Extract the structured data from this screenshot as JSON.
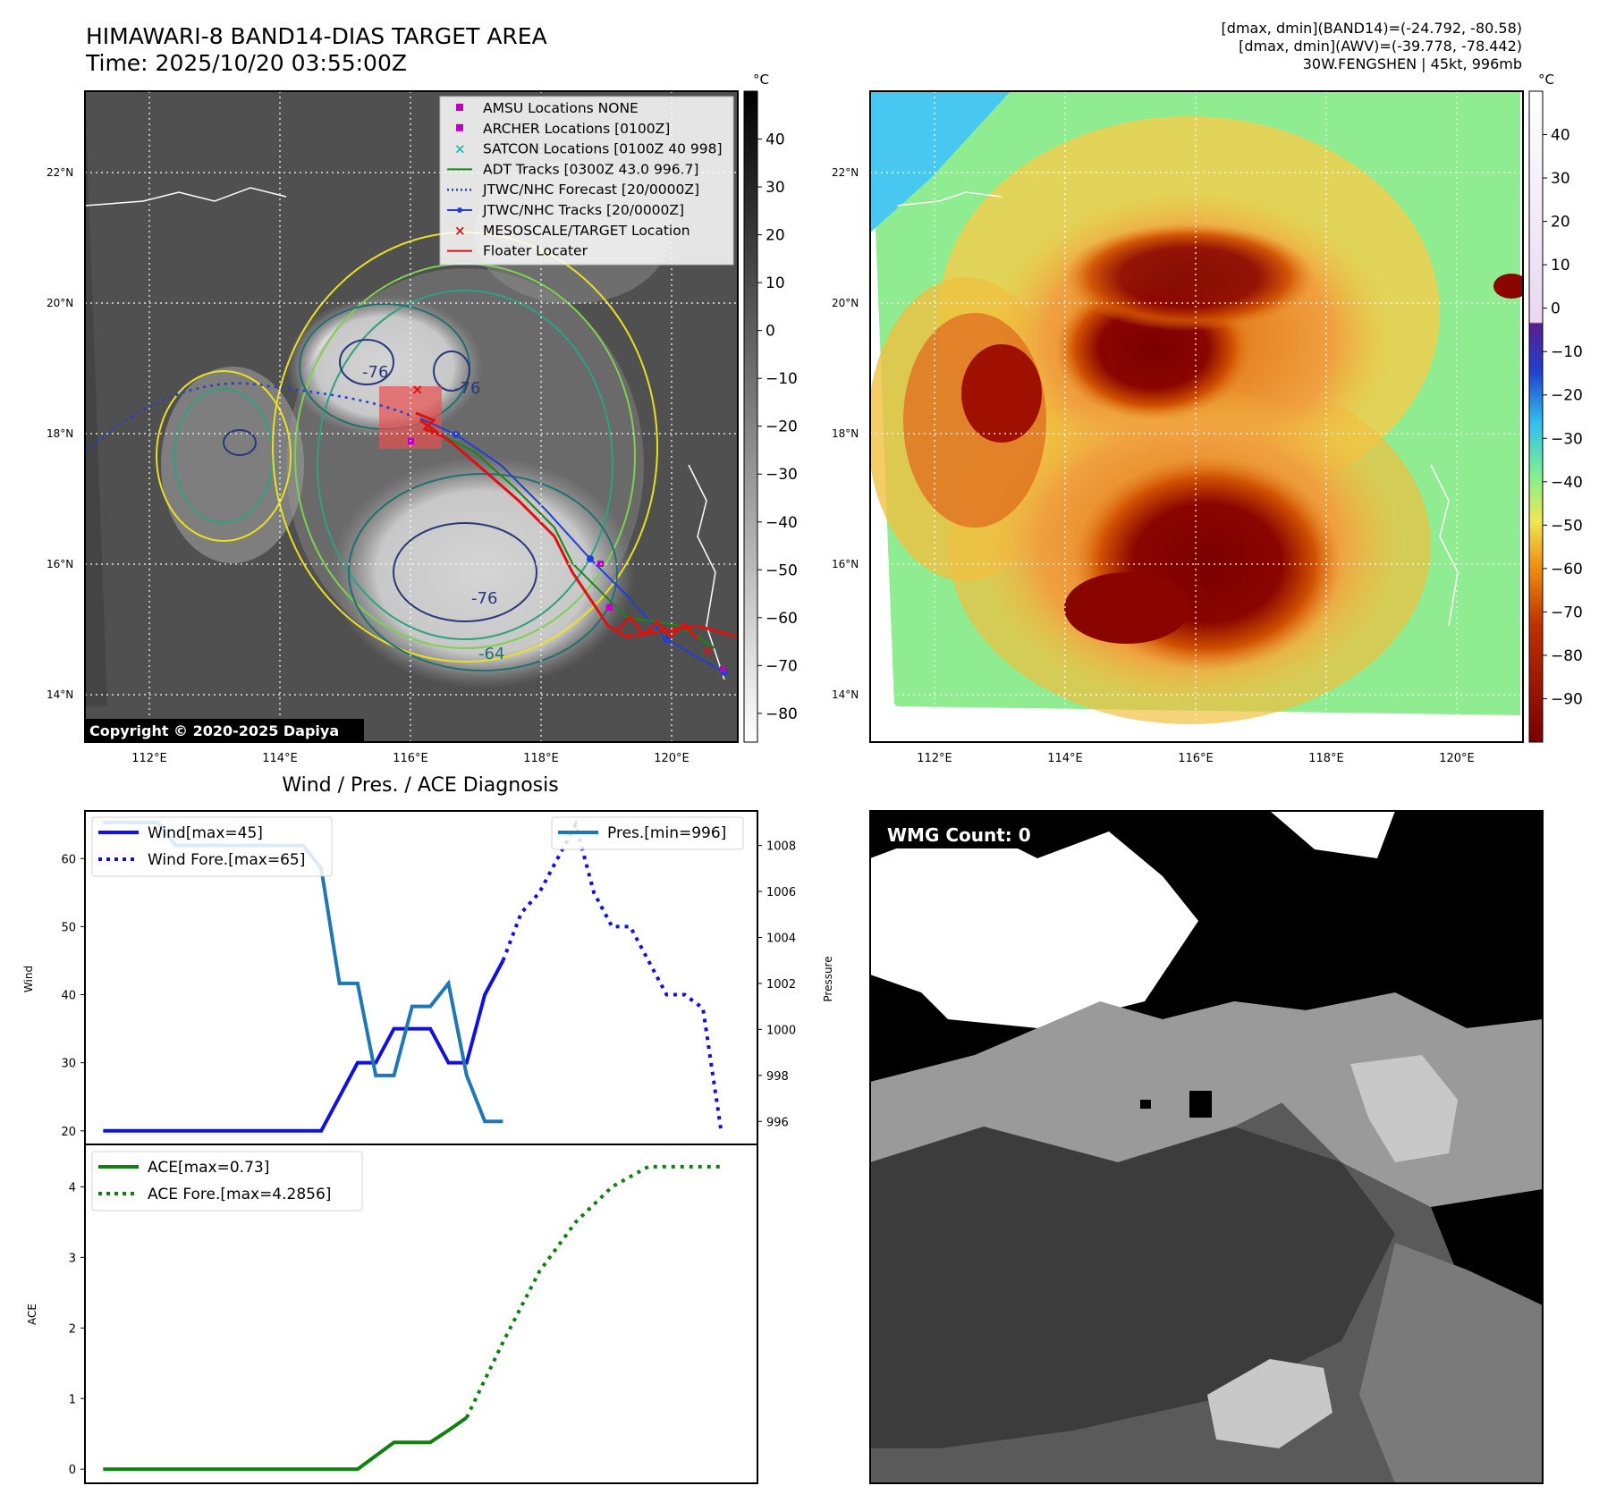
{
  "header": {
    "title": "HIMAWARI-8 BAND14-DIAS TARGET AREA",
    "time": "Time: 2025/10/20 03:55:00Z",
    "info_line1": "[dmax, dmin](BAND14)=(-24.792, -80.58)",
    "info_line2": "[dmax, dmin](AWV)=(-39.778, -78.442)",
    "info_line3": "30W.FENGSHEN | 45kt, 996mb"
  },
  "map_axes": {
    "lat_labels": [
      "22°N",
      "20°N",
      "18°N",
      "16°N",
      "14°N"
    ],
    "lon_labels": [
      "112°E",
      "114°E",
      "116°E",
      "118°E",
      "120°E"
    ]
  },
  "ir_panel": {
    "copyright": "Copyright © 2020-2025 Dapiya",
    "contour_labels": [
      "-76",
      "-76",
      "-76",
      "-64"
    ],
    "colorbar_unit": "°C",
    "colorbar_ticks": [
      "40",
      "30",
      "20",
      "10",
      "0",
      "−10",
      "−20",
      "−30",
      "−40",
      "−50",
      "−60",
      "−70",
      "−80"
    ],
    "legend": [
      {
        "label": "AMSU Locations NONE",
        "marker": "square",
        "color": "#c000c0"
      },
      {
        "label": "ARCHER Locations [0100Z]",
        "marker": "square",
        "color": "#c000c0"
      },
      {
        "label": "SATCON Locations [0100Z 40 998]",
        "marker": "x",
        "color": "#17bebe"
      },
      {
        "label": "ADT Tracks [0300Z 43.0 996.7]",
        "marker": "line",
        "color": "#138a13"
      },
      {
        "label": "JTWC/NHC Forecast [20/0000Z]",
        "marker": "dotted",
        "color": "#1f3fd6"
      },
      {
        "label": "JTWC/NHC Tracks [20/0000Z]",
        "marker": "line-dot",
        "color": "#1f3fd6"
      },
      {
        "label": "MESOSCALE/TARGET Location",
        "marker": "x",
        "color": "#e01010"
      },
      {
        "label": "Floater Locater",
        "marker": "line",
        "color": "#e01010"
      }
    ]
  },
  "awv_panel": {
    "colorbar_unit": "°C",
    "colorbar_ticks": [
      "40",
      "30",
      "20",
      "10",
      "0",
      "−10",
      "−20",
      "−30",
      "−40",
      "−50",
      "−60",
      "−70",
      "−80",
      "−90"
    ]
  },
  "wmg_panel": {
    "badge": "WMG Count: 0"
  },
  "chart_data": [
    {
      "type": "line",
      "title": "Wind / Pres. / ACE Diagnosis",
      "ylabel": "Wind",
      "ylim": [
        18,
        67
      ],
      "y_ticks": [
        "20",
        "30",
        "40",
        "50",
        "60"
      ],
      "y2label": "Pressure",
      "y2lim": [
        995,
        1009.5
      ],
      "y2_ticks": [
        "996",
        "998",
        "1000",
        "1002",
        "1004",
        "1006",
        "1008"
      ],
      "xlim": [
        -1,
        36
      ],
      "series": [
        {
          "name": "Wind[max=45]",
          "axis": "left",
          "style": "solid",
          "color": "#1010e0",
          "x": [
            0,
            12,
            14,
            15,
            16,
            17,
            18,
            19,
            20,
            21,
            22
          ],
          "y": [
            20,
            20,
            30,
            30,
            35,
            35,
            35,
            30,
            30,
            40,
            45
          ]
        },
        {
          "name": "Wind Fore.[max=65]",
          "axis": "left",
          "style": "dotted",
          "color": "#1010e0",
          "x": [
            22,
            23,
            24,
            25,
            26,
            27,
            28,
            29,
            30,
            31,
            32,
            33,
            34
          ],
          "y": [
            45,
            52,
            55,
            60,
            65,
            55,
            50,
            50,
            45,
            40,
            40,
            38,
            20
          ]
        },
        {
          "name": "Pres.[min=996]",
          "axis": "right",
          "style": "solid",
          "color": "#1f77b4",
          "x": [
            0,
            3,
            4,
            11,
            12,
            13,
            14,
            15,
            16,
            17,
            18,
            19,
            20,
            21,
            22
          ],
          "y": [
            1009,
            1009,
            1008,
            1008,
            1007,
            1002,
            1002,
            998,
            998,
            1001,
            1001,
            1002,
            998,
            996,
            996
          ]
        }
      ]
    },
    {
      "type": "line",
      "ylabel": "ACE",
      "ylim": [
        -0.2,
        4.6
      ],
      "y_ticks": [
        "0",
        "1",
        "2",
        "3",
        "4"
      ],
      "xlim": [
        -1,
        36
      ],
      "series": [
        {
          "name": "ACE[max=0.73]",
          "style": "solid",
          "color": "#108010",
          "x": [
            0,
            14,
            16,
            18,
            19,
            20
          ],
          "y": [
            0,
            0,
            0.38,
            0.38,
            0.55,
            0.73
          ]
        },
        {
          "name": "ACE Fore.[max=4.2856]",
          "style": "dotted",
          "color": "#108010",
          "x": [
            20,
            22,
            24,
            26,
            28,
            30,
            32,
            34
          ],
          "y": [
            0.73,
            1.8,
            2.8,
            3.5,
            4.0,
            4.2856,
            4.2856,
            4.2856
          ]
        }
      ]
    }
  ]
}
